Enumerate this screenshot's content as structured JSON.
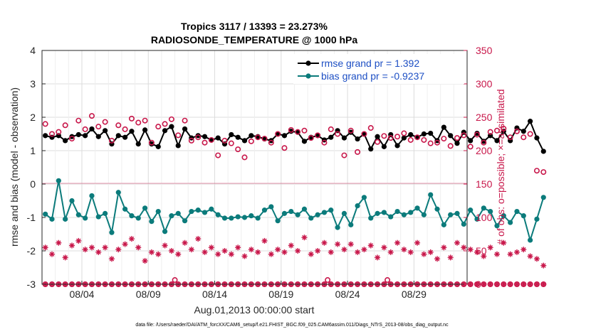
{
  "figure": {
    "title_line1": "Tropics 3117 / 13393 = 23.273%",
    "title_line2": "RADIOSONDE_TEMPERATURE @ 1000 hPa",
    "footnote": "data file: /Users/raeder/DAI/ATM_forcXX/CAM6_setup/f.e21.FHIST_BGC.f09_025.CAM6assim.011/Diags_NTrS_2013-08/obs_diag_output.nc"
  },
  "chart_data": {
    "type": "line",
    "xlabel": "Aug.01,2013 00:00:00 start",
    "ylabel_left": "rmse and bias (model - observation)",
    "ylabel_right": "# of obs: o=possible; ×=assimilated",
    "x_ticks": [
      "08/04",
      "08/09",
      "08/14",
      "08/19",
      "08/24",
      "08/29"
    ],
    "x_tick_days": [
      4,
      9,
      14,
      19,
      24,
      29
    ],
    "xlim_days": [
      1,
      33
    ],
    "ylim_left": [
      -3,
      4
    ],
    "yticks_left": [
      "-3",
      "-2",
      "-1",
      "0",
      "1",
      "2",
      "3",
      "4"
    ],
    "ylim_right": [
      0,
      350
    ],
    "yticks_right": [
      "0",
      "50",
      "100",
      "150",
      "200",
      "250",
      "300",
      "350"
    ],
    "grid": true,
    "zero_line": true,
    "legend_position": "top-right",
    "x_step_days": 0.5,
    "x_start_day": 1,
    "series": [
      {
        "name": "rmse grand pr = 1.392",
        "axis": "left",
        "color": "#000000",
        "style": "line-marker",
        "values": [
          1.45,
          1.4,
          1.45,
          1.3,
          1.42,
          1.48,
          1.45,
          1.65,
          1.42,
          1.6,
          1.2,
          1.45,
          1.4,
          1.58,
          1.2,
          1.62,
          1.2,
          1.12,
          1.6,
          1.72,
          1.15,
          1.65,
          1.38,
          1.45,
          1.42,
          1.32,
          1.38,
          1.2,
          1.48,
          1.4,
          1.3,
          1.45,
          1.42,
          1.35,
          1.3,
          1.5,
          1.45,
          1.58,
          1.55,
          1.28,
          1.4,
          1.45,
          1.32,
          1.4,
          1.6,
          1.38,
          1.55,
          1.35,
          1.5,
          1.05,
          1.42,
          1.12,
          1.48,
          1.15,
          1.38,
          1.48,
          1.4,
          1.5,
          1.52,
          1.3,
          1.7,
          1.45,
          1.22,
          1.55,
          1.3,
          1.52,
          1.28,
          1.45,
          1.3,
          1.58,
          1.3,
          1.68,
          1.58,
          1.88,
          1.38,
          0.98
        ]
      },
      {
        "name": "bias grand pr = -0.9237",
        "axis": "left",
        "color": "#0b7b7b",
        "style": "line-marker",
        "values": [
          -0.9,
          -1.05,
          0.1,
          -1.05,
          -0.5,
          -0.92,
          -1.02,
          -0.35,
          -0.98,
          -0.88,
          -1.45,
          -0.25,
          -0.75,
          -0.95,
          -1.02,
          -0.72,
          -1.12,
          -0.82,
          -1.42,
          -0.95,
          -0.88,
          -1.1,
          -0.82,
          -0.78,
          -0.85,
          -0.75,
          -0.92,
          -1.02,
          -1.02,
          -0.98,
          -1.0,
          -0.95,
          -1.02,
          -0.78,
          -0.68,
          -1.1,
          -0.88,
          -0.82,
          -0.92,
          -0.75,
          -1.02,
          -0.92,
          -0.85,
          -0.78,
          -1.3,
          -0.88,
          -1.22,
          -0.65,
          -0.4,
          -1.02,
          -0.88,
          -0.85,
          -0.98,
          -0.82,
          -0.92,
          -0.85,
          -0.72,
          -0.92,
          -0.32,
          -0.75,
          -1.22,
          -0.92,
          -0.88,
          -1.2,
          -0.78,
          -1.05,
          -0.72,
          -0.82,
          -1.25,
          -0.95,
          -1.15,
          -0.82,
          -0.95,
          -1.68,
          -1.05,
          -0.4
        ]
      },
      {
        "name": "possible",
        "axis": "right",
        "color": "#c8174a",
        "style": "open-circle",
        "values": [
          240,
          225,
          228,
          238,
          218,
          245,
          232,
          252,
          236,
          243,
          215,
          238,
          232,
          248,
          242,
          245,
          212,
          236,
          240,
          247,
          223,
          245,
          215,
          220,
          212,
          216,
          193,
          215,
          211,
          202,
          190,
          214,
          220,
          218,
          212,
          225,
          204,
          231,
          228,
          230,
          219,
          223,
          212,
          232,
          225,
          193,
          230,
          198,
          225,
          234,
          213,
          222,
          219,
          221,
          226,
          216,
          220,
          216,
          211,
          212,
          218,
          207,
          219,
          223,
          206,
          224,
          212,
          228,
          230,
          233,
          220,
          229,
          220,
          225,
          170,
          168
        ]
      },
      {
        "name": "assimilated",
        "axis": "right",
        "color": "#c8174a",
        "style": "asterisk",
        "values": [
          55,
          45,
          62,
          40,
          58,
          65,
          52,
          55,
          48,
          55,
          38,
          52,
          60,
          68,
          55,
          35,
          48,
          45,
          58,
          50,
          45,
          62,
          52,
          68,
          48,
          55,
          45,
          50,
          45,
          55,
          42,
          52,
          48,
          65,
          45,
          52,
          48,
          58,
          50,
          70,
          45,
          50,
          62,
          48,
          60,
          52,
          60,
          48,
          52,
          58,
          40,
          55,
          48,
          62,
          52,
          48,
          62,
          45,
          48,
          38,
          55,
          40,
          62,
          55,
          52,
          48,
          42,
          55,
          45,
          62,
          45,
          48,
          52,
          42,
          38,
          28
        ]
      },
      {
        "name": "possible-baseline",
        "axis": "right",
        "color": "#c8174a",
        "style": "open-circle",
        "values": [
          0,
          0,
          0,
          0,
          0,
          0,
          0,
          0,
          0,
          0,
          0,
          0,
          0,
          0,
          0,
          0,
          0,
          0,
          0,
          0,
          0,
          0,
          0,
          0,
          0,
          0,
          0,
          0,
          0,
          0,
          0,
          0,
          0,
          0,
          0,
          0,
          0,
          0,
          0,
          0,
          0,
          0,
          0,
          0,
          0,
          0,
          0,
          0,
          0,
          0,
          0,
          0,
          0,
          0,
          0,
          0,
          0,
          0,
          0,
          0,
          0,
          0,
          0,
          0,
          0,
          0,
          0,
          0,
          0,
          0,
          0,
          0,
          0,
          0,
          0,
          0
        ]
      },
      {
        "name": "assimilated-baseline",
        "axis": "right",
        "color": "#c8174a",
        "style": "asterisk",
        "values": [
          0,
          0,
          0,
          0,
          0,
          0,
          0,
          0,
          0,
          0,
          0,
          0,
          0,
          0,
          0,
          0,
          0,
          0,
          0,
          0,
          0,
          0,
          0,
          0,
          0,
          0,
          0,
          0,
          0,
          0,
          0,
          0,
          0,
          0,
          0,
          0,
          0,
          0,
          0,
          0,
          0,
          0,
          0,
          0,
          0,
          0,
          0,
          0,
          0,
          0,
          0,
          0,
          0,
          0,
          0,
          0,
          0,
          0,
          0,
          0,
          0,
          0,
          0,
          0,
          0,
          0,
          0,
          0,
          0,
          0,
          0,
          0,
          0,
          0,
          0,
          0
        ]
      }
    ],
    "outlier_points": [
      {
        "series": "possible",
        "day": 11.0,
        "value": 1
      },
      {
        "series": "possible",
        "day": 22.5,
        "value": 1
      },
      {
        "series": "possible",
        "day": 27.0,
        "value": 1
      }
    ]
  }
}
